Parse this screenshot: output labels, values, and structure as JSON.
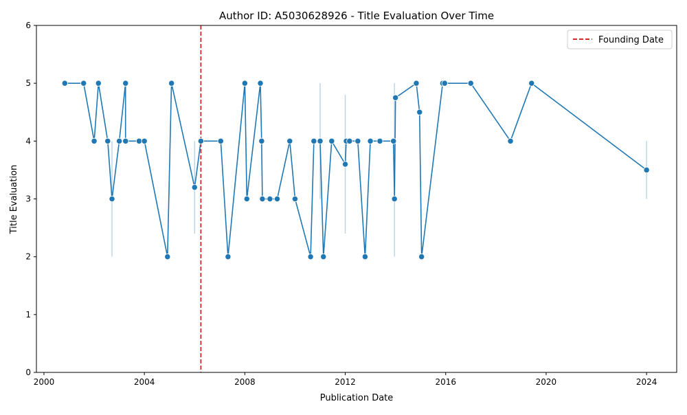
{
  "chart_data": {
    "type": "line",
    "title": "Author ID: A5030628926 - Title Evaluation Over Time",
    "xlabel": "Publication Date",
    "ylabel": "Title Evaluation",
    "xlim": [
      1999.7,
      2025.2
    ],
    "ylim": [
      0,
      6
    ],
    "xticks": [
      2000,
      2004,
      2008,
      2012,
      2016,
      2020,
      2024
    ],
    "yticks": [
      0,
      1,
      2,
      3,
      4,
      5,
      6
    ],
    "grid": false,
    "legend": {
      "position": "upper-right",
      "entries": [
        "Founding Date"
      ]
    },
    "colors": {
      "series": "#1f77b4",
      "band": "#a6c8e0",
      "founding": "#d62728"
    },
    "founding_date": 2006.25,
    "series": [
      {
        "x": [
          2000.83,
          2001.58,
          2002.0,
          2002.17,
          2002.54,
          2002.71,
          2003.0,
          2003.25,
          2003.25,
          2003.79,
          2004.0,
          2004.92,
          2005.08,
          2006.0,
          2006.25,
          2007.04,
          2007.33,
          2008.0,
          2008.08,
          2008.62,
          2008.67,
          2008.7,
          2009.0,
          2009.29,
          2009.79,
          2010.0,
          2010.62,
          2010.75,
          2011.0,
          2011.13,
          2011.46,
          2012.0,
          2012.04,
          2012.17,
          2012.5,
          2012.79,
          2013.0,
          2013.38,
          2013.92,
          2013.96,
          2014.0,
          2014.83,
          2014.96,
          2015.04,
          2015.88,
          2015.96,
          2017.0,
          2018.58,
          2019.42,
          2024.0
        ],
        "y": [
          5.0,
          5.0,
          4.0,
          5.0,
          4.0,
          3.0,
          4.0,
          5.0,
          4.0,
          4.0,
          4.0,
          2.0,
          5.0,
          3.2,
          4.0,
          4.0,
          2.0,
          5.0,
          3.0,
          5.0,
          4.0,
          3.0,
          3.0,
          3.0,
          4.0,
          3.0,
          2.0,
          4.0,
          4.0,
          2.0,
          4.0,
          3.6,
          4.0,
          4.0,
          4.0,
          2.0,
          4.0,
          4.0,
          4.0,
          3.0,
          4.75,
          5.0,
          4.5,
          2.0,
          5.0,
          5.0,
          5.0,
          4.0,
          5.0,
          3.5
        ]
      }
    ],
    "bands": [
      {
        "x": 2002.71,
        "low": 2.0,
        "high": 4.0
      },
      {
        "x": 2006.0,
        "low": 2.4,
        "high": 4.0
      },
      {
        "x": 2011.0,
        "low": 3.0,
        "high": 5.0
      },
      {
        "x": 2012.0,
        "low": 2.4,
        "high": 4.8
      },
      {
        "x": 2013.96,
        "low": 2.0,
        "high": 5.0
      },
      {
        "x": 2024.0,
        "low": 3.0,
        "high": 4.0
      }
    ]
  }
}
